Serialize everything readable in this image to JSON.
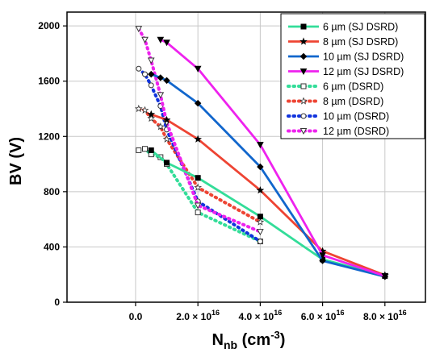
{
  "chart_data": {
    "type": "line",
    "title": "",
    "xlabel": "N",
    "xlabel_sub": "nb",
    "xlabel_unit": " (cm",
    "xlabel_sup": "-3",
    "xlabel_end": ")",
    "ylabel": "BV (V)",
    "xlim": [
      -2.2e+16,
      9.3e+16
    ],
    "ylim": [
      0,
      2100
    ],
    "grid": true,
    "legend_position": "top-right",
    "x_ticks": [
      {
        "value": 0,
        "label": "0.0"
      },
      {
        "value": 2e+16,
        "label": "2.0 × 10",
        "exp": "16"
      },
      {
        "value": 4e+16,
        "label": "4.0 × 10",
        "exp": "16"
      },
      {
        "value": 6e+16,
        "label": "6.0 × 10",
        "exp": "16"
      },
      {
        "value": 8e+16,
        "label": "8.0 × 10",
        "exp": "16"
      }
    ],
    "y_ticks": [
      {
        "value": 0,
        "label": "0"
      },
      {
        "value": 400,
        "label": "400"
      },
      {
        "value": 800,
        "label": "800"
      },
      {
        "value": 1200,
        "label": "1200"
      },
      {
        "value": 1600,
        "label": "1600"
      },
      {
        "value": 2000,
        "label": "2000"
      }
    ],
    "series": [
      {
        "name": "6 µm (SJ DSRD)",
        "color": "#33dd99",
        "dash": false,
        "marker": "square",
        "x": [
          5000000000000000.0,
          1e+16,
          2e+16,
          4e+16,
          6e+16,
          8e+16
        ],
        "y": [
          1100,
          1010,
          900,
          620,
          310,
          190
        ]
      },
      {
        "name": "8 µm (SJ DSRD)",
        "color": "#ee4433",
        "dash": false,
        "marker": "star",
        "x": [
          5000000000000000.0,
          1e+16,
          2e+16,
          4e+16,
          6e+16,
          8e+16
        ],
        "y": [
          1360,
          1320,
          1180,
          810,
          370,
          195
        ]
      },
      {
        "name": "10 µm (SJ DSRD)",
        "color": "#1166cc",
        "dash": false,
        "marker": "diamond",
        "x": [
          5000000000000000.0,
          8000000000000000.0,
          1e+16,
          2e+16,
          4e+16,
          6e+16,
          8e+16
        ],
        "y": [
          1650,
          1625,
          1605,
          1440,
          980,
          300,
          185
        ]
      },
      {
        "name": "12 µm (SJ DSRD)",
        "color": "#ee22ee",
        "dash": false,
        "marker": "triangle-down",
        "x": [
          8000000000000000.0,
          1e+16,
          2e+16,
          4e+16,
          6e+16,
          8e+16
        ],
        "y": [
          1900,
          1880,
          1690,
          1140,
          340,
          190
        ]
      },
      {
        "name": "6 µm (DSRD)",
        "color": "#33dd99",
        "dash": true,
        "marker": "square-open",
        "x": [
          1000000000000000.0,
          3000000000000000.0,
          5000000000000000.0,
          8000000000000000.0,
          1e+16,
          2e+16,
          4e+16
        ],
        "y": [
          1100,
          1110,
          1070,
          1050,
          1000,
          650,
          440
        ]
      },
      {
        "name": "8 µm (DSRD)",
        "color": "#ee4433",
        "dash": true,
        "marker": "star-open",
        "x": [
          1000000000000000.0,
          3000000000000000.0,
          5000000000000000.0,
          8000000000000000.0,
          1e+16,
          2e+16,
          4e+16
        ],
        "y": [
          1400,
          1390,
          1330,
          1270,
          1180,
          830,
          580
        ]
      },
      {
        "name": "10 µm (DSRD)",
        "color": "#1133dd",
        "dash": true,
        "marker": "circle-open",
        "x": [
          1000000000000000.0,
          3000000000000000.0,
          5000000000000000.0,
          8000000000000000.0,
          1e+16,
          2e+16,
          4e+16
        ],
        "y": [
          1690,
          1650,
          1570,
          1420,
          1250,
          730,
          440
        ]
      },
      {
        "name": "12 µm (DSRD)",
        "color": "#ee22ee",
        "dash": true,
        "marker": "triangle-open",
        "x": [
          1000000000000000.0,
          3000000000000000.0,
          5000000000000000.0,
          8000000000000000.0,
          1e+16,
          2e+16,
          4e+16
        ],
        "y": [
          1980,
          1900,
          1750,
          1500,
          1300,
          700,
          510
        ]
      }
    ]
  }
}
